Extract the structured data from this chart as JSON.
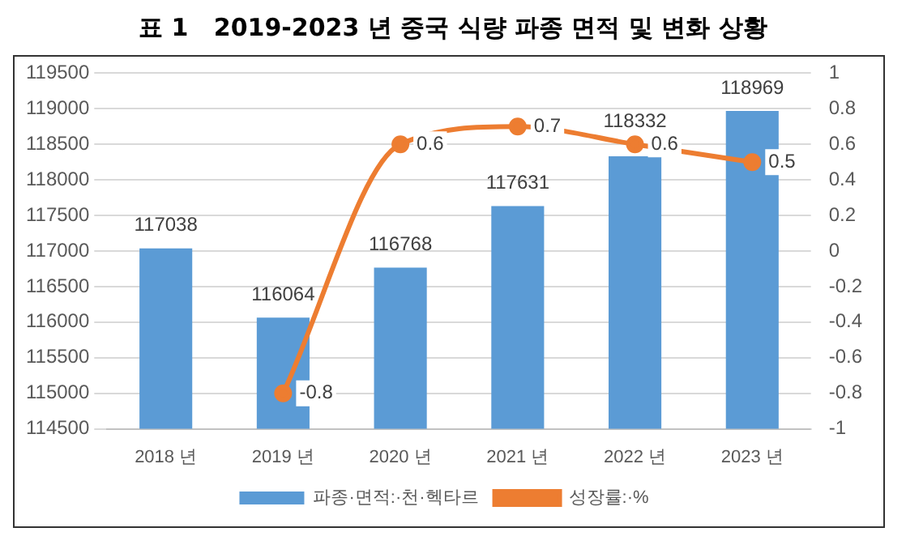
{
  "chart_data": {
    "type": "bar",
    "title": "표 1   2019-2023 년 중국 식량 파종 면적 및 변화 상황",
    "categories": [
      "2018 년",
      "2019 년",
      "2020 년",
      "2021 년",
      "2022 년",
      "2023 년"
    ],
    "series": [
      {
        "name": "파종·면적:·천·헥타르",
        "color": "#5b9bd5",
        "values": [
          117038,
          116064,
          116768,
          117631,
          118332,
          118969
        ]
      },
      {
        "name": "성장률:·%",
        "type": "line",
        "axis": "y2",
        "color": "#ed7d31",
        "values": [
          null,
          -0.8,
          0.6,
          0.7,
          0.6,
          0.5
        ]
      }
    ],
    "ylim": [
      114500,
      119500
    ],
    "yticks": [
      114500,
      115000,
      115500,
      116000,
      116500,
      117000,
      117500,
      118000,
      118500,
      119000,
      119500
    ],
    "y2lim": [
      -1,
      1
    ],
    "y2ticks": [
      -1,
      -0.8,
      -0.6,
      -0.4,
      -0.2,
      0,
      0.2,
      0.4,
      0.6,
      0.8,
      1
    ],
    "grid": "y",
    "legend": "bottom",
    "marker": "circle",
    "data_labels": true
  }
}
